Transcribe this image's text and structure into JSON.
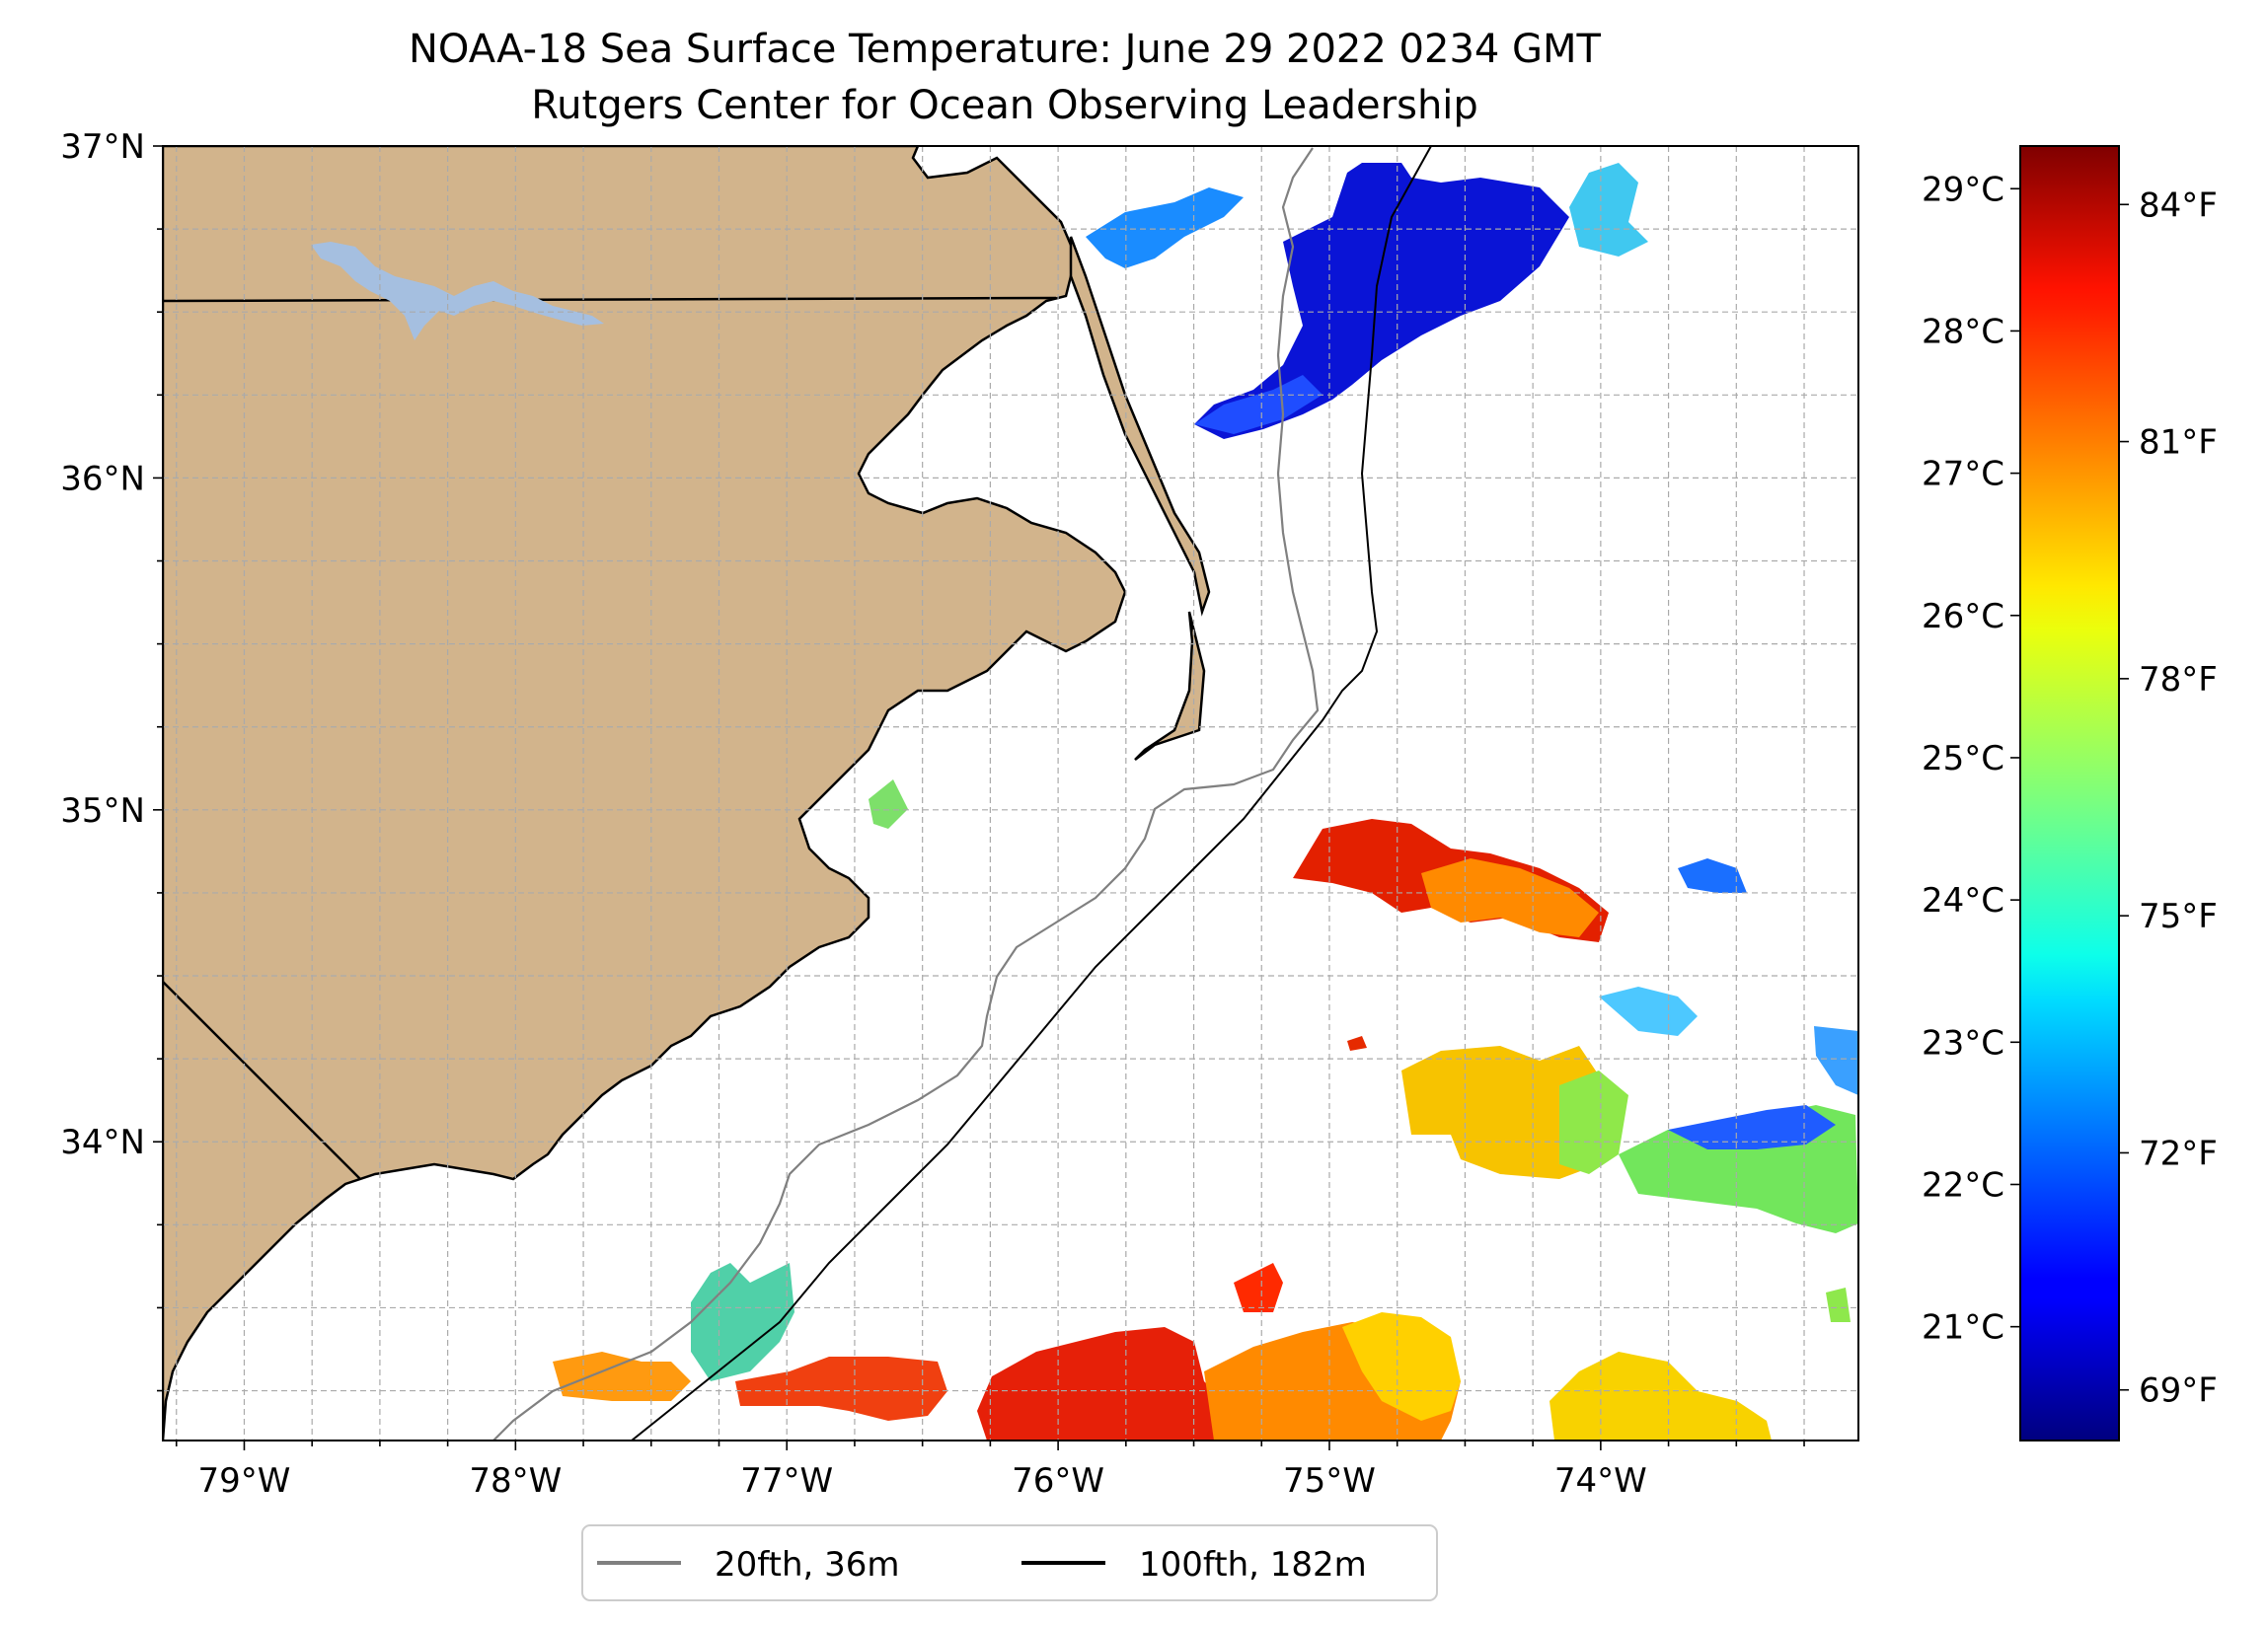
{
  "title_line1": "NOAA-18 Sea Surface Temperature: June 29 2022 0234 GMT",
  "title_line2": "Rutgers Center for Ocean Observing Leadership",
  "map": {
    "lon_range": [
      -79.3,
      -73.05
    ],
    "lat_range": [
      33.1,
      37.0
    ],
    "lon_ticks": [
      "79°W",
      "78°W",
      "77°W",
      "76°W",
      "75°W",
      "74°W"
    ],
    "lon_tick_values": [
      -79,
      -78,
      -77,
      -76,
      -75,
      -74
    ],
    "lat_ticks": [
      "37°N",
      "36°N",
      "35°N",
      "34°N"
    ],
    "lat_tick_values": [
      37,
      36,
      35,
      34
    ],
    "gridlines": true,
    "land_color": "#d2b48c",
    "lake_color": "#a5bfe0"
  },
  "colorbar": {
    "colormap": "jet",
    "range_c": [
      20.2,
      29.3
    ],
    "celsius_ticks": [
      "29°C",
      "28°C",
      "27°C",
      "26°C",
      "25°C",
      "24°C",
      "23°C",
      "22°C",
      "21°C"
    ],
    "celsius_tick_values": [
      29,
      28,
      27,
      26,
      25,
      24,
      23,
      22,
      21
    ],
    "fahrenheit_ticks": [
      "84°F",
      "81°F",
      "78°F",
      "75°F",
      "72°F",
      "69°F"
    ],
    "fahrenheit_tick_values": [
      84,
      81,
      78,
      75,
      72,
      69
    ]
  },
  "legend": {
    "placement": "bottom-center",
    "items": [
      {
        "label": "20fth, 36m",
        "color": "#808080"
      },
      {
        "label": "100fth, 182m",
        "color": "#000000"
      }
    ]
  },
  "chart_data": {
    "type": "heatmap",
    "title": "NOAA-18 Sea Surface Temperature: June 29 2022 0234 GMT",
    "subtitle": "Rutgers Center for Ocean Observing Leadership",
    "units": "°C",
    "sst_patches": [
      {
        "lon": -75.8,
        "lat": 36.8,
        "temp_c": 22.6
      },
      {
        "lon": -74.9,
        "lat": 36.7,
        "temp_c": 20.6
      },
      {
        "lon": -74.3,
        "lat": 36.75,
        "temp_c": 20.6
      },
      {
        "lon": -75.2,
        "lat": 36.4,
        "temp_c": 20.9
      },
      {
        "lon": -74.4,
        "lat": 36.2,
        "temp_c": 20.9
      },
      {
        "lon": -73.85,
        "lat": 36.8,
        "temp_c": 23.5
      },
      {
        "lon": -74.85,
        "lat": 34.8,
        "temp_c": 28.3
      },
      {
        "lon": -74.3,
        "lat": 34.75,
        "temp_c": 27.3
      },
      {
        "lon": -73.6,
        "lat": 34.77,
        "temp_c": 22.4
      },
      {
        "lon": -74.3,
        "lat": 34.1,
        "temp_c": 25.8
      },
      {
        "lon": -73.6,
        "lat": 34.05,
        "temp_c": 23.4
      },
      {
        "lon": -73.3,
        "lat": 33.9,
        "temp_c": 22.5
      },
      {
        "lon": -77.0,
        "lat": 33.45,
        "temp_c": 24.5
      },
      {
        "lon": -76.6,
        "lat": 33.2,
        "temp_c": 28.0
      },
      {
        "lon": -77.7,
        "lat": 33.25,
        "temp_c": 26.5
      },
      {
        "lon": -76.0,
        "lat": 33.25,
        "temp_c": 28.3
      },
      {
        "lon": -75.5,
        "lat": 33.2,
        "temp_c": 27.8
      },
      {
        "lon": -75.0,
        "lat": 33.2,
        "temp_c": 26.4
      },
      {
        "lon": -74.8,
        "lat": 33.3,
        "temp_c": 25.2
      },
      {
        "lon": -73.8,
        "lat": 33.2,
        "temp_c": 25.7
      },
      {
        "lon": -76.8,
        "lat": 35.05,
        "temp_c": 24.4
      }
    ]
  }
}
